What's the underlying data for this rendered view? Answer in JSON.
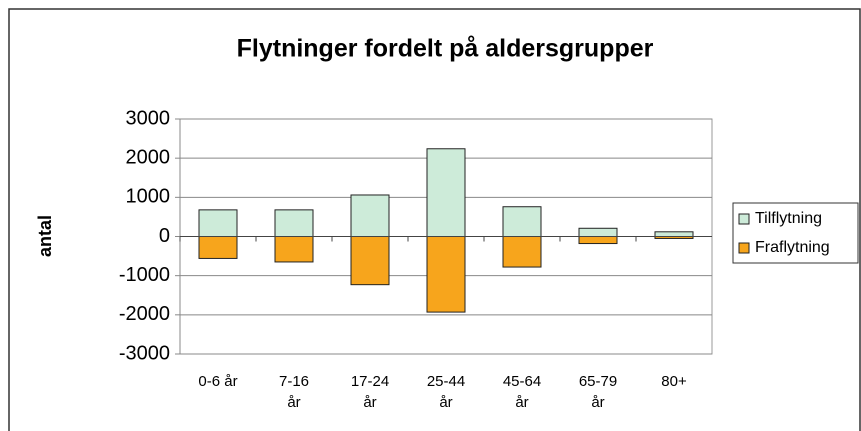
{
  "chart_data": {
    "type": "bar",
    "title": "Flytninger fordelt på aldersgrupper",
    "y_label": "antal",
    "categories": [
      "0-6 år",
      "7-16 år",
      "17-24 år",
      "25-44 år",
      "45-64 år",
      "65-79 år",
      "80+"
    ],
    "series": [
      {
        "name": "Tilflytning",
        "color": "#cdebd9",
        "values": [
          680,
          680,
          1060,
          2240,
          760,
          210,
          120
        ]
      },
      {
        "name": "Fraflytning",
        "color": "#f7a51c",
        "values": [
          -560,
          -650,
          -1230,
          -1930,
          -780,
          -180,
          -50
        ]
      }
    ],
    "ylim": [
      -3000,
      3000
    ],
    "yticks": [
      -3000,
      -2000,
      -1000,
      0,
      1000,
      2000,
      3000
    ],
    "grid": true,
    "legend": "right"
  }
}
